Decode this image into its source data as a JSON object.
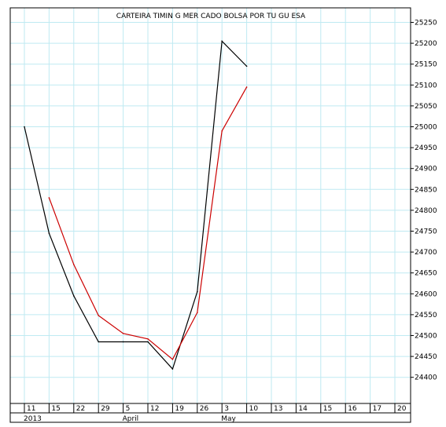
{
  "chart_data": {
    "type": "line",
    "title": "CARTEIRA TIMIN G MER CADO BOLSA POR TU GU ESA",
    "xlabel": "",
    "ylabel": "",
    "x_ticks": [
      "11",
      "15",
      "22",
      "29",
      "5",
      "12",
      "19",
      "26",
      "3",
      "10",
      "13",
      "14",
      "15",
      "16",
      "17",
      "20"
    ],
    "period_labels": [
      {
        "label": "2013",
        "at_tick": 0
      },
      {
        "label": "April",
        "at_tick": 4
      },
      {
        "label": "May",
        "at_tick": 8
      }
    ],
    "ylim": [
      24350,
      25290
    ],
    "y_ticks": [
      24400,
      24450,
      24500,
      24550,
      24600,
      24650,
      24700,
      24750,
      24800,
      24850,
      24900,
      24950,
      25000,
      25050,
      25100,
      25150,
      25200,
      25250
    ],
    "series": [
      {
        "color": "#000000",
        "points": [
          [
            0,
            25000
          ],
          [
            1,
            24745
          ],
          [
            2,
            24595
          ],
          [
            3,
            24485
          ],
          [
            4,
            24485
          ],
          [
            5,
            24485
          ],
          [
            6,
            24420
          ],
          [
            7,
            24605
          ],
          [
            8,
            25205
          ],
          [
            9,
            25145
          ]
        ]
      },
      {
        "color": "#cc0000",
        "points": [
          [
            1,
            24830
          ],
          [
            2,
            24670
          ],
          [
            3,
            24548
          ],
          [
            4,
            24505
          ],
          [
            5,
            24492
          ],
          [
            6,
            24443
          ],
          [
            7,
            24555
          ],
          [
            8,
            24990
          ],
          [
            9,
            25095
          ]
        ]
      }
    ],
    "grid": true,
    "grid_color": "#bfeaf2"
  }
}
